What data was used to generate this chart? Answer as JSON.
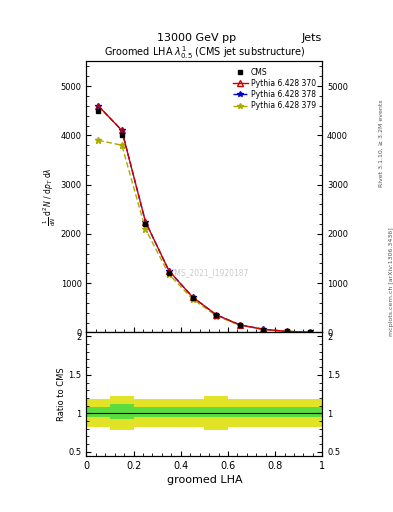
{
  "title_top": "13000 GeV pp",
  "title_right_top": "Jets",
  "plot_title": "Groomed LHA $\\lambda^1_{0.5}$ (CMS jet substructure)",
  "xlabel": "groomed LHA",
  "ylabel_ratio": "Ratio to CMS",
  "right_label_main": "mcplots.cern.ch [arXiv:1306.3436]",
  "right_label_rivet": "Rivet 3.1.10, ≥ 3.2M events",
  "watermark": "CMS_2021_I1920187",
  "cms_x": [
    0.05,
    0.15,
    0.25,
    0.35,
    0.45,
    0.55,
    0.65,
    0.75,
    0.85,
    0.95
  ],
  "cms_y": [
    4500,
    4000,
    2200,
    1200,
    700,
    350,
    150,
    60,
    20,
    5
  ],
  "p370_x": [
    0.05,
    0.15,
    0.25,
    0.35,
    0.45,
    0.55,
    0.65,
    0.75,
    0.85,
    0.95
  ],
  "p370_y": [
    4600,
    4100,
    2250,
    1250,
    720,
    360,
    155,
    65,
    22,
    6
  ],
  "p378_x": [
    0.05,
    0.15,
    0.25,
    0.35,
    0.45,
    0.55,
    0.65,
    0.75,
    0.85,
    0.95
  ],
  "p378_y": [
    4600,
    4100,
    2250,
    1250,
    720,
    360,
    155,
    65,
    22,
    6
  ],
  "p379_x": [
    0.05,
    0.15,
    0.25,
    0.35,
    0.45,
    0.55,
    0.65,
    0.75,
    0.85,
    0.95
  ],
  "p379_y": [
    3900,
    3800,
    2100,
    1180,
    680,
    340,
    145,
    60,
    20,
    5
  ],
  "ratio_x_edges": [
    0.0,
    0.1,
    0.2,
    0.3,
    0.4,
    0.5,
    0.6,
    0.7,
    0.8,
    0.9,
    1.0
  ],
  "ratio_green_lo": [
    0.95,
    0.92,
    0.95,
    0.95,
    0.95,
    0.95,
    0.95,
    0.95,
    0.95,
    0.95
  ],
  "ratio_green_hi": [
    1.08,
    1.12,
    1.08,
    1.08,
    1.08,
    1.08,
    1.08,
    1.08,
    1.08,
    1.08
  ],
  "ratio_yellow_lo": [
    0.82,
    0.78,
    0.82,
    0.82,
    0.82,
    0.78,
    0.82,
    0.82,
    0.82,
    0.82
  ],
  "ratio_yellow_hi": [
    1.18,
    1.22,
    1.18,
    1.18,
    1.18,
    1.22,
    1.18,
    1.18,
    1.18,
    1.18
  ],
  "color_cms": "#000000",
  "color_p370": "#cc0000",
  "color_p378": "#0000cc",
  "color_p379": "#aaaa00",
  "bg_color": "#ffffff",
  "ylim_main": [
    0,
    5500
  ],
  "xlim": [
    0.0,
    1.0
  ],
  "ylim_ratio": [
    0.45,
    2.05
  ],
  "yticks_main": [
    0,
    1000,
    2000,
    3000,
    4000,
    5000
  ],
  "ytick_labels_main": [
    "0",
    "1000",
    "2000",
    "3000",
    "4000",
    "5000"
  ],
  "yticks_ratio": [
    0.5,
    1.0,
    1.5,
    2.0
  ],
  "ytick_labels_ratio": [
    "0.5",
    "1",
    "1.5",
    "2"
  ],
  "xticks": [
    0.0,
    0.2,
    0.4,
    0.6,
    0.8,
    1.0
  ],
  "xtick_labels": [
    "0",
    "0.2",
    "0.4",
    "0.6",
    "0.8",
    "1"
  ]
}
